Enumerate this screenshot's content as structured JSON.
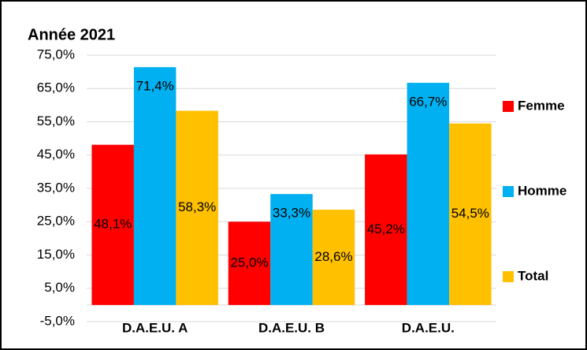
{
  "chart_data": {
    "type": "bar",
    "title": "Année 2021",
    "categories": [
      "D.A.E.U. A",
      "D.A.E.U. B",
      "D.A.E.U."
    ],
    "series": [
      {
        "name": "Femme",
        "color": "#ff0000",
        "values": [
          48.1,
          25.0,
          45.2
        ],
        "value_labels": [
          "48,1%",
          "25,0%",
          "45,2%"
        ]
      },
      {
        "name": "Homme",
        "color": "#00b0f0",
        "values": [
          71.4,
          33.3,
          66.7
        ],
        "value_labels": [
          "71,4%",
          "33,3%",
          "66,7%"
        ]
      },
      {
        "name": "Total",
        "color": "#ffc000",
        "values": [
          58.3,
          28.6,
          54.5
        ],
        "value_labels": [
          "58,3%",
          "28,6%",
          "54,5%"
        ]
      }
    ],
    "ylim": [
      -5,
      75
    ],
    "yticks": [
      {
        "value": -5,
        "label": "-5,0%"
      },
      {
        "value": 5,
        "label": "5,0%"
      },
      {
        "value": 15,
        "label": "15,0%"
      },
      {
        "value": 25,
        "label": "25,0%"
      },
      {
        "value": 35,
        "label": "35,0%"
      },
      {
        "value": 45,
        "label": "45,0%"
      },
      {
        "value": 55,
        "label": "55,0%"
      },
      {
        "value": 65,
        "label": "65,0%"
      },
      {
        "value": 75,
        "label": "75,0%"
      }
    ],
    "grid": true,
    "legend": "right"
  }
}
